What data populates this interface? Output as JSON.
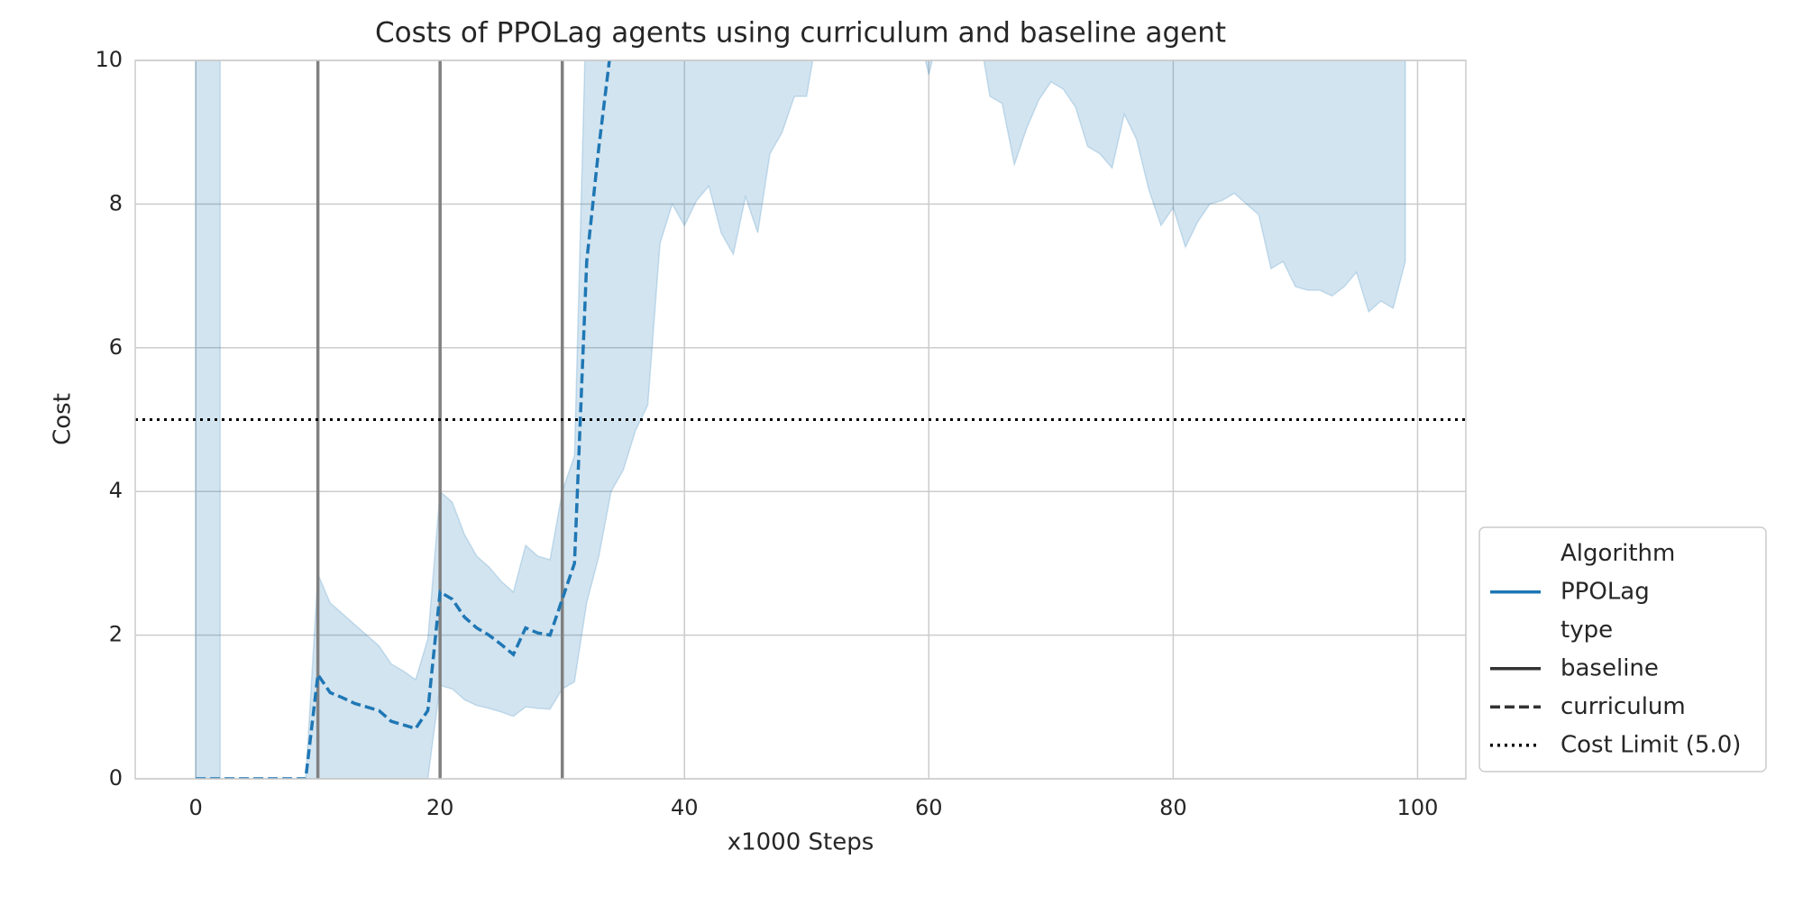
{
  "chart_data": {
    "type": "line",
    "title": "Costs of PPOLag agents using curriculum and baseline agent",
    "xlabel": "x1000 Steps",
    "ylabel": "Cost",
    "xlim": [
      -4.95,
      103.95
    ],
    "ylim": [
      0,
      10
    ],
    "xticks": [
      0,
      20,
      40,
      60,
      80,
      100
    ],
    "yticks": [
      0,
      2,
      4,
      6,
      8,
      10
    ],
    "grid": true,
    "series": [
      {
        "color": "#1f77b4",
        "dash": "dashed",
        "x": [
          0,
          1,
          2,
          3,
          4,
          5,
          6,
          7,
          8,
          9,
          10,
          11,
          12,
          13,
          14,
          15,
          16,
          17,
          18,
          19,
          20,
          21,
          22,
          23,
          24,
          25,
          26,
          27,
          28,
          29,
          30,
          31,
          32,
          33,
          34
        ],
        "values": [
          0,
          0,
          0,
          0,
          0,
          0,
          0,
          0,
          0,
          0,
          1.45,
          1.2,
          1.13,
          1.05,
          1.0,
          0.95,
          0.8,
          0.75,
          0.7,
          0.95,
          2.6,
          2.5,
          2.25,
          2.1,
          2.0,
          1.87,
          1.73,
          2.1,
          2.03,
          2.0,
          2.5,
          3.0,
          7.2,
          8.8,
          10.2
        ]
      }
    ],
    "bands": [
      {
        "color": "#1f77b4",
        "x": [
          0,
          1,
          2
        ],
        "lower": [
          0,
          0,
          0
        ],
        "upper": [
          11,
          11,
          11
        ]
      },
      {
        "color": "#1f77b4",
        "x": [
          0,
          1,
          2,
          3,
          4,
          5,
          6,
          7,
          8,
          9,
          10,
          11,
          12,
          13,
          14,
          15,
          16,
          17,
          18,
          19,
          20,
          21,
          22,
          23,
          24,
          25,
          26,
          27,
          28,
          29,
          30,
          31,
          32,
          33,
          34,
          35,
          36,
          37,
          38,
          39,
          40,
          41,
          42,
          43,
          44,
          45,
          46,
          47,
          48,
          49,
          50,
          51,
          52,
          53,
          54,
          55,
          56,
          57,
          58,
          59,
          60,
          61,
          62,
          63,
          64,
          65,
          66,
          67,
          68,
          69,
          70,
          71,
          72,
          73,
          74,
          75,
          76,
          77,
          78,
          79,
          80,
          81,
          82,
          83,
          84,
          85,
          86,
          87,
          88,
          89,
          90,
          91,
          92,
          93,
          94,
          95,
          96,
          97,
          98,
          99
        ],
        "lower": [
          0,
          0,
          0,
          0,
          0,
          0,
          0,
          0,
          0,
          0,
          0,
          0,
          0,
          0,
          0,
          0,
          0,
          0,
          0,
          0,
          1.3,
          1.25,
          1.1,
          1.02,
          0.98,
          0.93,
          0.87,
          1.0,
          0.98,
          0.97,
          1.25,
          1.35,
          2.45,
          3.1,
          4.0,
          4.3,
          4.85,
          5.2,
          7.45,
          8.0,
          7.7,
          8.05,
          8.25,
          7.6,
          7.3,
          8.1,
          7.6,
          8.7,
          9.0,
          9.5,
          9.5,
          10.5,
          10.5,
          10.5,
          10.5,
          10.5,
          10.5,
          10.5,
          10.5,
          10.5,
          9.8,
          10.5,
          10.5,
          10.5,
          10.5,
          9.5,
          9.4,
          8.55,
          9.05,
          9.45,
          9.7,
          9.6,
          9.35,
          8.8,
          8.7,
          8.5,
          9.25,
          8.9,
          8.2,
          7.7,
          7.95,
          7.4,
          7.75,
          8.0,
          8.05,
          8.15,
          8.0,
          7.85,
          7.1,
          7.2,
          6.85,
          6.8,
          6.8,
          6.72,
          6.85,
          7.05,
          6.5,
          6.65,
          6.55,
          7.2
        ],
        "upper": [
          0,
          0,
          0,
          0,
          0,
          0,
          0,
          0,
          0,
          0,
          2.85,
          2.45,
          2.3,
          2.15,
          2.0,
          1.85,
          1.6,
          1.5,
          1.38,
          1.95,
          4.0,
          3.85,
          3.4,
          3.1,
          2.95,
          2.75,
          2.6,
          3.25,
          3.1,
          3.05,
          4.0,
          4.5,
          11,
          11,
          11,
          11,
          11,
          11,
          11,
          11,
          11,
          11,
          11,
          11,
          11,
          11,
          11,
          11,
          11,
          11,
          11,
          11,
          11,
          11,
          11,
          11,
          11,
          11,
          11,
          11,
          11,
          11,
          11,
          11,
          11,
          11,
          11,
          11,
          11,
          11,
          11,
          11,
          11,
          11,
          11,
          11,
          11,
          11,
          11,
          11,
          11,
          11,
          11,
          11,
          11,
          11,
          11,
          11,
          11,
          11,
          11,
          11,
          11,
          11,
          11,
          11,
          11,
          11,
          11,
          11
        ]
      }
    ],
    "vlines": [
      10,
      20,
      30
    ],
    "hline": 5.0,
    "legend": {
      "position": "outside lower right",
      "entries": [
        {
          "label": "Algorithm",
          "style": "header"
        },
        {
          "label": "PPOLag",
          "style": "solid",
          "color": "#1f77b4"
        },
        {
          "label": "type",
          "style": "header"
        },
        {
          "label": "baseline",
          "style": "solid",
          "color": "#333333"
        },
        {
          "label": "curriculum",
          "style": "dashed",
          "color": "#333333"
        },
        {
          "label": "Cost Limit (5.0)",
          "style": "dotted",
          "color": "#000000"
        }
      ]
    }
  }
}
